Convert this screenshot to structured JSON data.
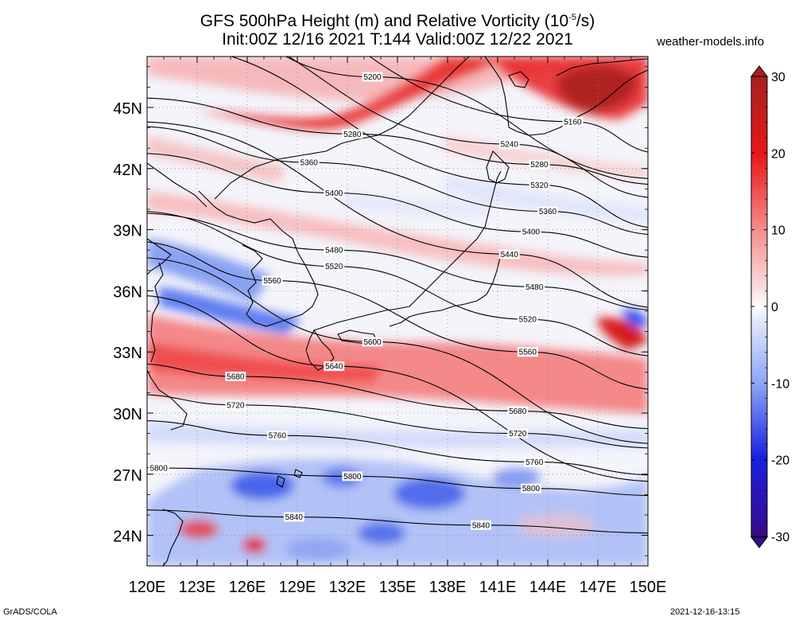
{
  "header": {
    "title_line1_prefix": "GFS 500hPa Height (m) and Relative Vorticity (10",
    "title_line1_exp": "-5",
    "title_line1_suffix": "/s)",
    "title_line2": "Init:00Z 12/16 2021 T:144 Valid:00Z 12/22 2021",
    "site": "weather-models.info"
  },
  "footer": {
    "left": "GrADS/COLA",
    "right": "2021-12-16-13:15"
  },
  "map": {
    "lon_range": [
      120,
      150
    ],
    "lat_range": [
      22.5,
      47.5
    ],
    "lon_ticks": [
      "120E",
      "123E",
      "126E",
      "129E",
      "132E",
      "135E",
      "138E",
      "141E",
      "144E",
      "147E",
      "150E"
    ],
    "lat_ticks": [
      "24N",
      "27N",
      "30N",
      "33N",
      "36N",
      "39N",
      "42N",
      "45N"
    ],
    "height_contours": [
      {
        "value": 5160,
        "label": "5160",
        "label_at": [
          145.5,
          44.3
        ]
      },
      {
        "value": 5200,
        "label": "5200",
        "label_at": [
          133.5,
          46.5
        ]
      },
      {
        "value": 5240,
        "label": "5240",
        "label_at": [
          141.7,
          43.2
        ]
      },
      {
        "value": 5280,
        "label": "5280",
        "label_at": [
          132.3,
          43.7
        ]
      },
      {
        "value": 5280,
        "label": "5280",
        "label_at": [
          143.5,
          42.2
        ]
      },
      {
        "value": 5320,
        "label": "5320",
        "label_at": [
          143.5,
          41.2
        ]
      },
      {
        "value": 5360,
        "label": "5360",
        "label_at": [
          129.7,
          42.3
        ]
      },
      {
        "value": 5360,
        "label": "5360",
        "label_at": [
          144.0,
          39.9
        ]
      },
      {
        "value": 5400,
        "label": "5400",
        "label_at": [
          131.2,
          40.8
        ]
      },
      {
        "value": 5400,
        "label": "5400",
        "label_at": [
          143.0,
          38.9
        ]
      },
      {
        "value": 5440,
        "label": "5440",
        "label_at": [
          141.7,
          37.8
        ]
      },
      {
        "value": 5480,
        "label": "5480",
        "label_at": [
          131.2,
          38.0
        ]
      },
      {
        "value": 5480,
        "label": "5480",
        "label_at": [
          143.2,
          36.2
        ]
      },
      {
        "value": 5520,
        "label": "5520",
        "label_at": [
          131.2,
          37.2
        ]
      },
      {
        "value": 5520,
        "label": "5520",
        "label_at": [
          142.8,
          34.6
        ]
      },
      {
        "value": 5560,
        "label": "5560",
        "label_at": [
          127.5,
          36.5
        ]
      },
      {
        "value": 5560,
        "label": "5560",
        "label_at": [
          142.8,
          33.0
        ]
      },
      {
        "value": 5600,
        "label": "5600",
        "label_at": [
          133.5,
          33.5
        ]
      },
      {
        "value": 5640,
        "label": "5640",
        "label_at": [
          131.2,
          32.3
        ]
      },
      {
        "value": 5680,
        "label": "5680",
        "label_at": [
          125.3,
          31.8
        ]
      },
      {
        "value": 5680,
        "label": "5680",
        "label_at": [
          142.2,
          30.1
        ]
      },
      {
        "value": 5720,
        "label": "5720",
        "label_at": [
          125.3,
          30.4
        ]
      },
      {
        "value": 5720,
        "label": "5720",
        "label_at": [
          142.2,
          29.0
        ]
      },
      {
        "value": 5760,
        "label": "5760",
        "label_at": [
          127.8,
          28.9
        ]
      },
      {
        "value": 5760,
        "label": "5760",
        "label_at": [
          143.2,
          27.6
        ]
      },
      {
        "value": 5800,
        "label": "5800",
        "label_at": [
          120.7,
          27.3
        ]
      },
      {
        "value": 5800,
        "label": "5800",
        "label_at": [
          132.3,
          26.9
        ]
      },
      {
        "value": 5800,
        "label": "5800",
        "label_at": [
          143.0,
          26.3
        ]
      },
      {
        "value": 5840,
        "label": "5840",
        "label_at": [
          128.8,
          24.9
        ]
      },
      {
        "value": 5840,
        "label": "5840",
        "label_at": [
          140.0,
          24.5
        ]
      }
    ]
  },
  "colorbar": {
    "min": -30,
    "max": 30,
    "tick_labels": [
      "30",
      "20",
      "10",
      "0",
      "-10",
      "-20",
      "-30"
    ],
    "colors": [
      "#3a0a8c",
      "#1a10c8",
      "#2040f0",
      "#5a80f8",
      "#9cb8fa",
      "#d2defb",
      "#ffffff",
      "#fad2d2",
      "#f89c9c",
      "#f25858",
      "#e61818",
      "#c81818",
      "#a82020"
    ]
  }
}
